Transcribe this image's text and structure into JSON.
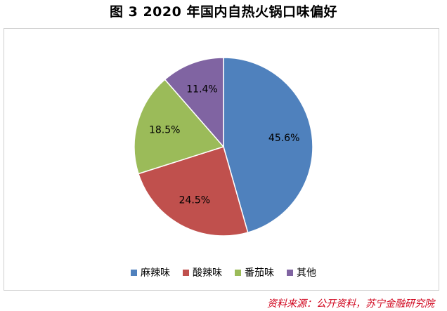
{
  "chart_data": {
    "type": "pie",
    "title": "图 3  2020 年国内自热火锅口味偏好",
    "categories": [
      "麻辣味",
      "酸辣味",
      "番茄味",
      "其他"
    ],
    "values": [
      45.6,
      24.5,
      18.5,
      11.4
    ],
    "labels": [
      "45.6%",
      "24.5%",
      "18.5%",
      "11.4%"
    ],
    "colors": [
      "#4f81bd",
      "#c0504d",
      "#9bbb59",
      "#8064a2"
    ],
    "legend_position": "bottom",
    "start_angle": "12 o'clock, clockwise"
  },
  "source": "资料来源：公开资料，苏宁金融研究院"
}
